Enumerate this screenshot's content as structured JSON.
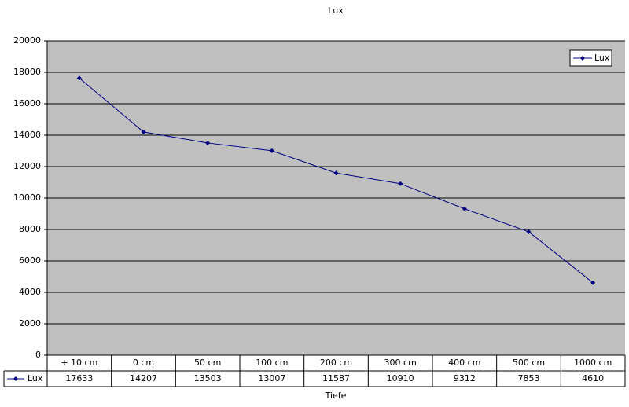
{
  "chart_data": {
    "type": "line",
    "title": "Lux",
    "x_label": "Tiefe",
    "categories": [
      "+ 10 cm",
      "0 cm",
      "50 cm",
      "100 cm",
      "200 cm",
      "300 cm",
      "400 cm",
      "500 cm",
      "1000 cm"
    ],
    "series": [
      {
        "name": "Lux",
        "color": "#000080",
        "values": [
          17633,
          14207,
          13503,
          13007,
          11587,
          10910,
          9312,
          7853,
          4610
        ]
      }
    ],
    "ylim": [
      0,
      20000
    ],
    "yticks": [
      0,
      2000,
      4000,
      6000,
      8000,
      10000,
      12000,
      14000,
      16000,
      18000,
      20000
    ],
    "grid": true,
    "legend": "top-right",
    "data_table": true
  }
}
